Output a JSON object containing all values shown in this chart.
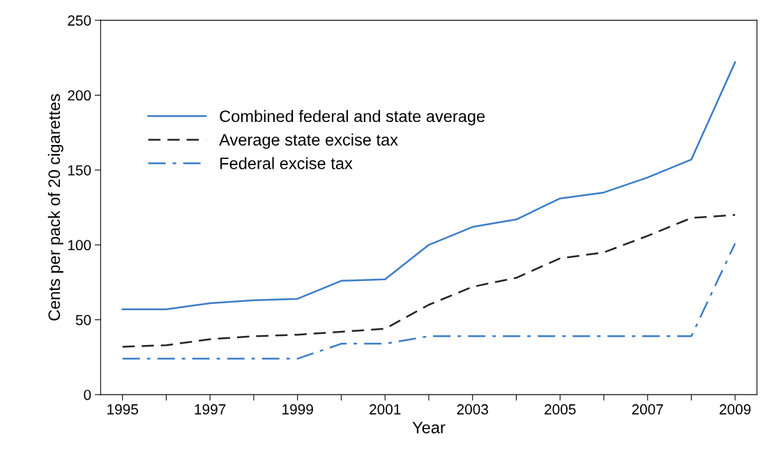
{
  "chart_data": {
    "type": "line",
    "xlabel": "Year",
    "ylabel": "Cents per pack of 20 cigarettes",
    "x": [
      1995,
      1996,
      1997,
      1998,
      1999,
      2000,
      2001,
      2002,
      2003,
      2004,
      2005,
      2006,
      2007,
      2008,
      2009
    ],
    "series": [
      {
        "name": "Combined federal and state average",
        "color": "#3b7dc8",
        "line_style": "solid",
        "values": [
          57,
          57,
          61,
          63,
          64,
          76,
          77,
          100,
          112,
          117,
          131,
          135,
          145,
          157,
          222
        ]
      },
      {
        "name": "Average state excise tax",
        "color": "#222222",
        "line_style": "dashed",
        "values": [
          32,
          33,
          37,
          39,
          40,
          42,
          44,
          60,
          72,
          78,
          91,
          95,
          106,
          118,
          120
        ]
      },
      {
        "name": "Federal excise tax",
        "color": "#3b7dc8",
        "line_style": "dashdot",
        "values": [
          24,
          24,
          24,
          24,
          24,
          34,
          34,
          39,
          39,
          39,
          39,
          39,
          39,
          39,
          101
        ]
      }
    ],
    "xlim": [
      1994.5,
      2009.5
    ],
    "ylim": [
      0,
      250
    ],
    "xticks": [
      1995,
      {
        "value": 1996,
        "label": null
      },
      1997,
      {
        "value": 1998,
        "label": null
      },
      1999,
      {
        "value": 2000,
        "label": null
      },
      2001,
      {
        "value": 2002,
        "label": null
      },
      2003,
      {
        "value": 2004,
        "label": null
      },
      2005,
      {
        "value": 2006,
        "label": null
      },
      2007,
      {
        "value": 2008,
        "label": null
      },
      2009
    ],
    "yticks": [
      0,
      50,
      100,
      150,
      200,
      250
    ],
    "grid": false,
    "legend": "top left",
    "marker": "none"
  }
}
